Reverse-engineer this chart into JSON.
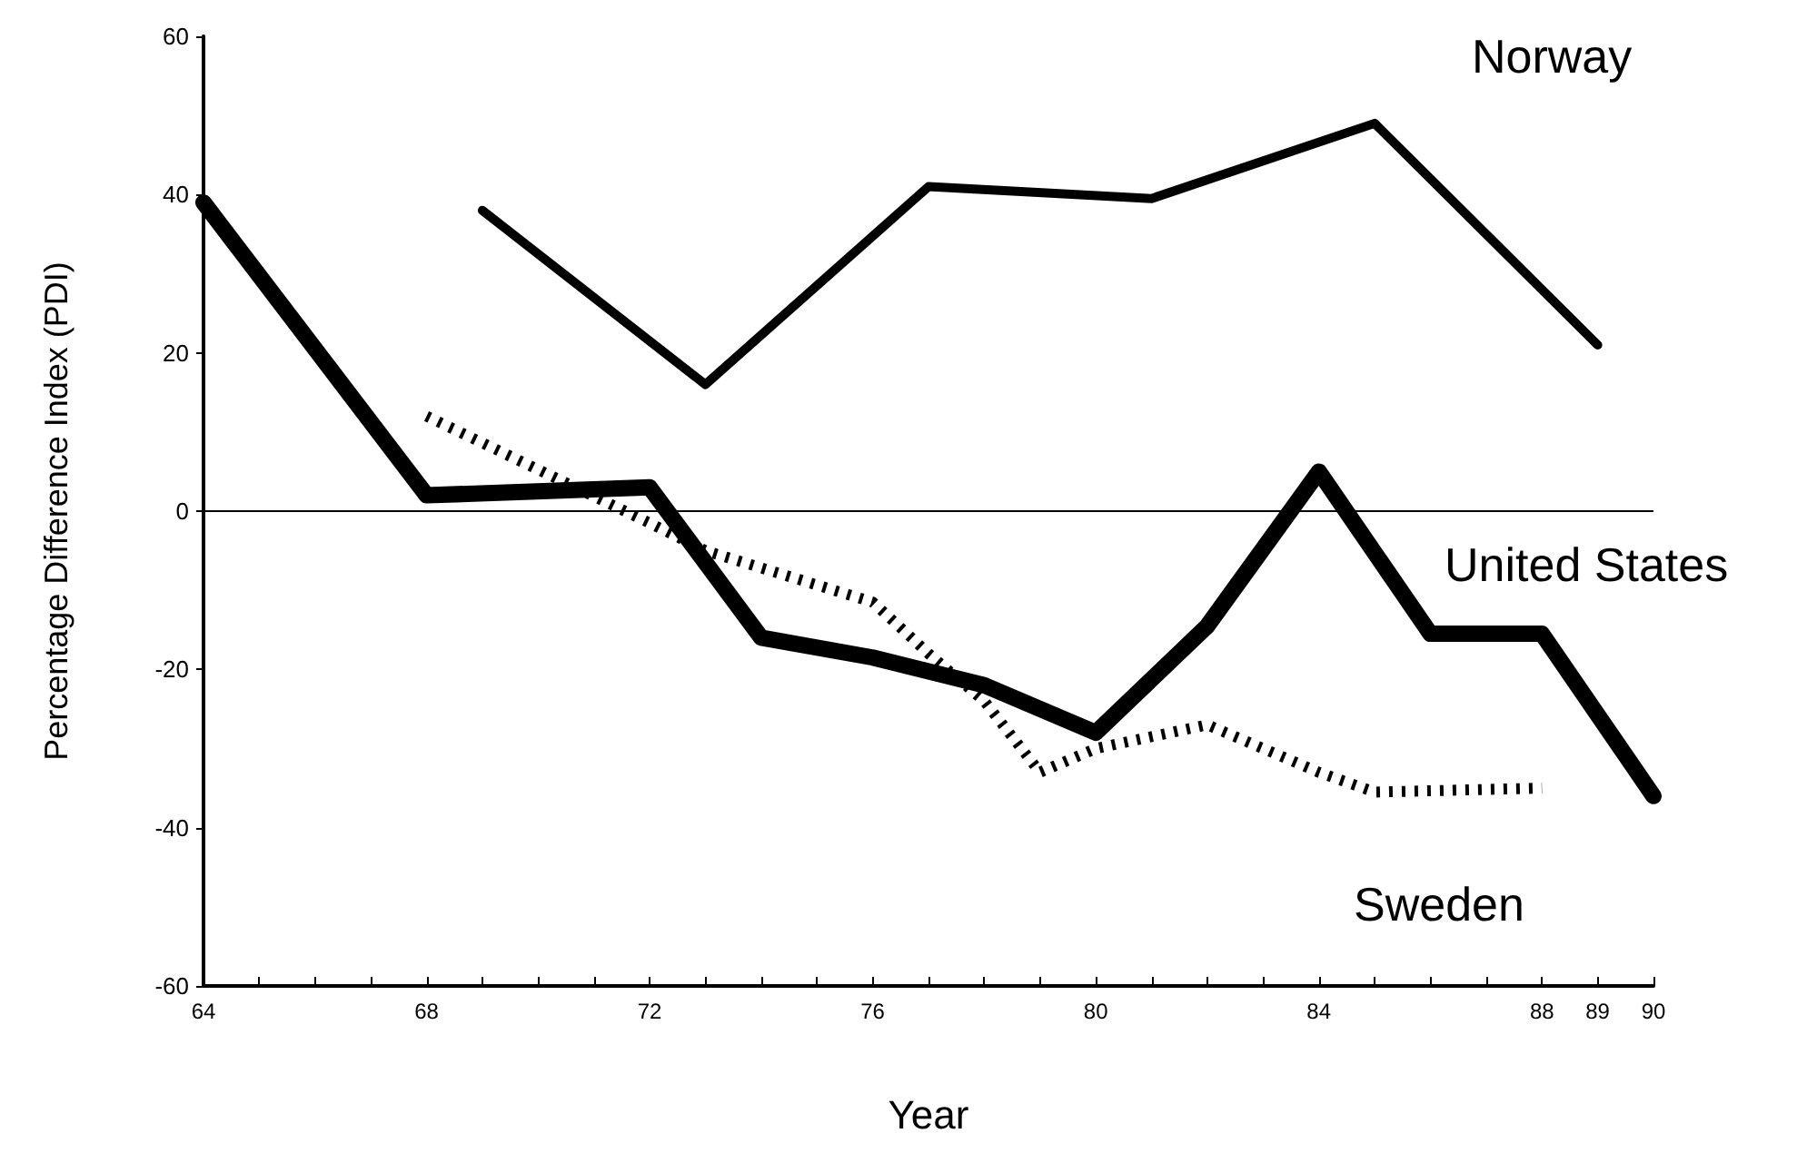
{
  "chart_data": {
    "type": "line",
    "xlabel": "Year",
    "ylabel": "Percentage Difference Index (PDI)",
    "xlim": [
      64,
      90
    ],
    "xticks": [
      64,
      {
        "value": 65,
        "label": null
      },
      {
        "value": 66,
        "label": null
      },
      {
        "value": 67,
        "label": null
      },
      68,
      {
        "value": 69,
        "label": null
      },
      {
        "value": 70,
        "label": null
      },
      {
        "value": 71,
        "label": null
      },
      72,
      {
        "value": 73,
        "label": null
      },
      {
        "value": 74,
        "label": null
      },
      {
        "value": 75,
        "label": null
      },
      76,
      {
        "value": 77,
        "label": null
      },
      {
        "value": 78,
        "label": null
      },
      {
        "value": 79,
        "label": null
      },
      80,
      {
        "value": 81,
        "label": null
      },
      {
        "value": 82,
        "label": null
      },
      {
        "value": 83,
        "label": null
      },
      84,
      {
        "value": 85,
        "label": null
      },
      {
        "value": 86,
        "label": null
      },
      {
        "value": 87,
        "label": null
      },
      88,
      89,
      90
    ],
    "ylim": [
      -60,
      60
    ],
    "yticks": [
      -60,
      -40,
      -20,
      0,
      20,
      40,
      60
    ],
    "grid": false,
    "legend": false,
    "marker": "none",
    "ref_lines": [
      {
        "axis": "y",
        "value": 0,
        "color": "#000000"
      }
    ],
    "series": [
      {
        "name": "Norway",
        "color": "#000000",
        "line_style": "solid",
        "x": [
          69,
          73,
          77,
          81,
          85,
          89
        ],
        "values": [
          38,
          16,
          41,
          39.5,
          49,
          21
        ]
      },
      {
        "name": "United States",
        "color": "#000000",
        "line_style": "solid",
        "x": [
          64,
          68,
          72,
          74,
          76,
          78,
          80,
          82,
          84,
          86,
          88,
          90
        ],
        "values": [
          39,
          2,
          3,
          -16,
          -18.5,
          -22,
          -28,
          -14.5,
          5,
          -15.5,
          -15.5,
          -36
        ]
      },
      {
        "name": "Sweden",
        "color": "#000000",
        "line_style": "dotted",
        "x": [
          68,
          72,
          73,
          76,
          77,
          78,
          79,
          80,
          82,
          84,
          85,
          88
        ],
        "values": [
          12,
          -1.5,
          -5,
          -11.5,
          -18,
          -24,
          -33,
          -30,
          -27,
          -33,
          -35.5,
          -35
        ]
      }
    ]
  }
}
